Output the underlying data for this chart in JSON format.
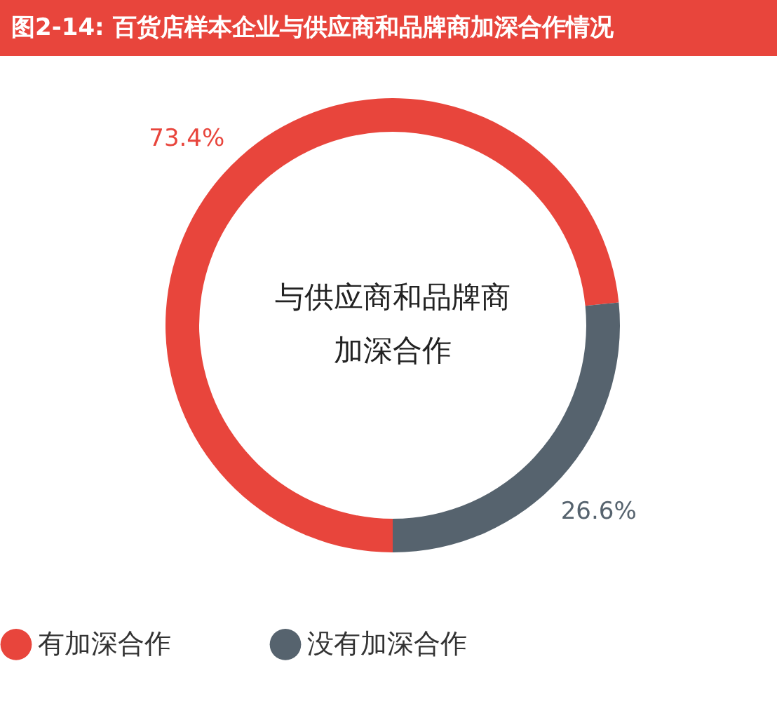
{
  "chart_data": {
    "type": "donut",
    "title": "图2-14: 百货店样本企业与供应商和品牌商加深合作情况",
    "categories": [
      "有加深合作",
      "没有加深合作"
    ],
    "values": [
      73.4,
      26.6
    ],
    "colors": [
      "#e8453c",
      "#56636e"
    ],
    "value_labels": [
      "73.4%",
      "26.6%"
    ],
    "annotations": [
      "与供应商和品牌商",
      "加深合作"
    ],
    "legend": "bottom"
  }
}
